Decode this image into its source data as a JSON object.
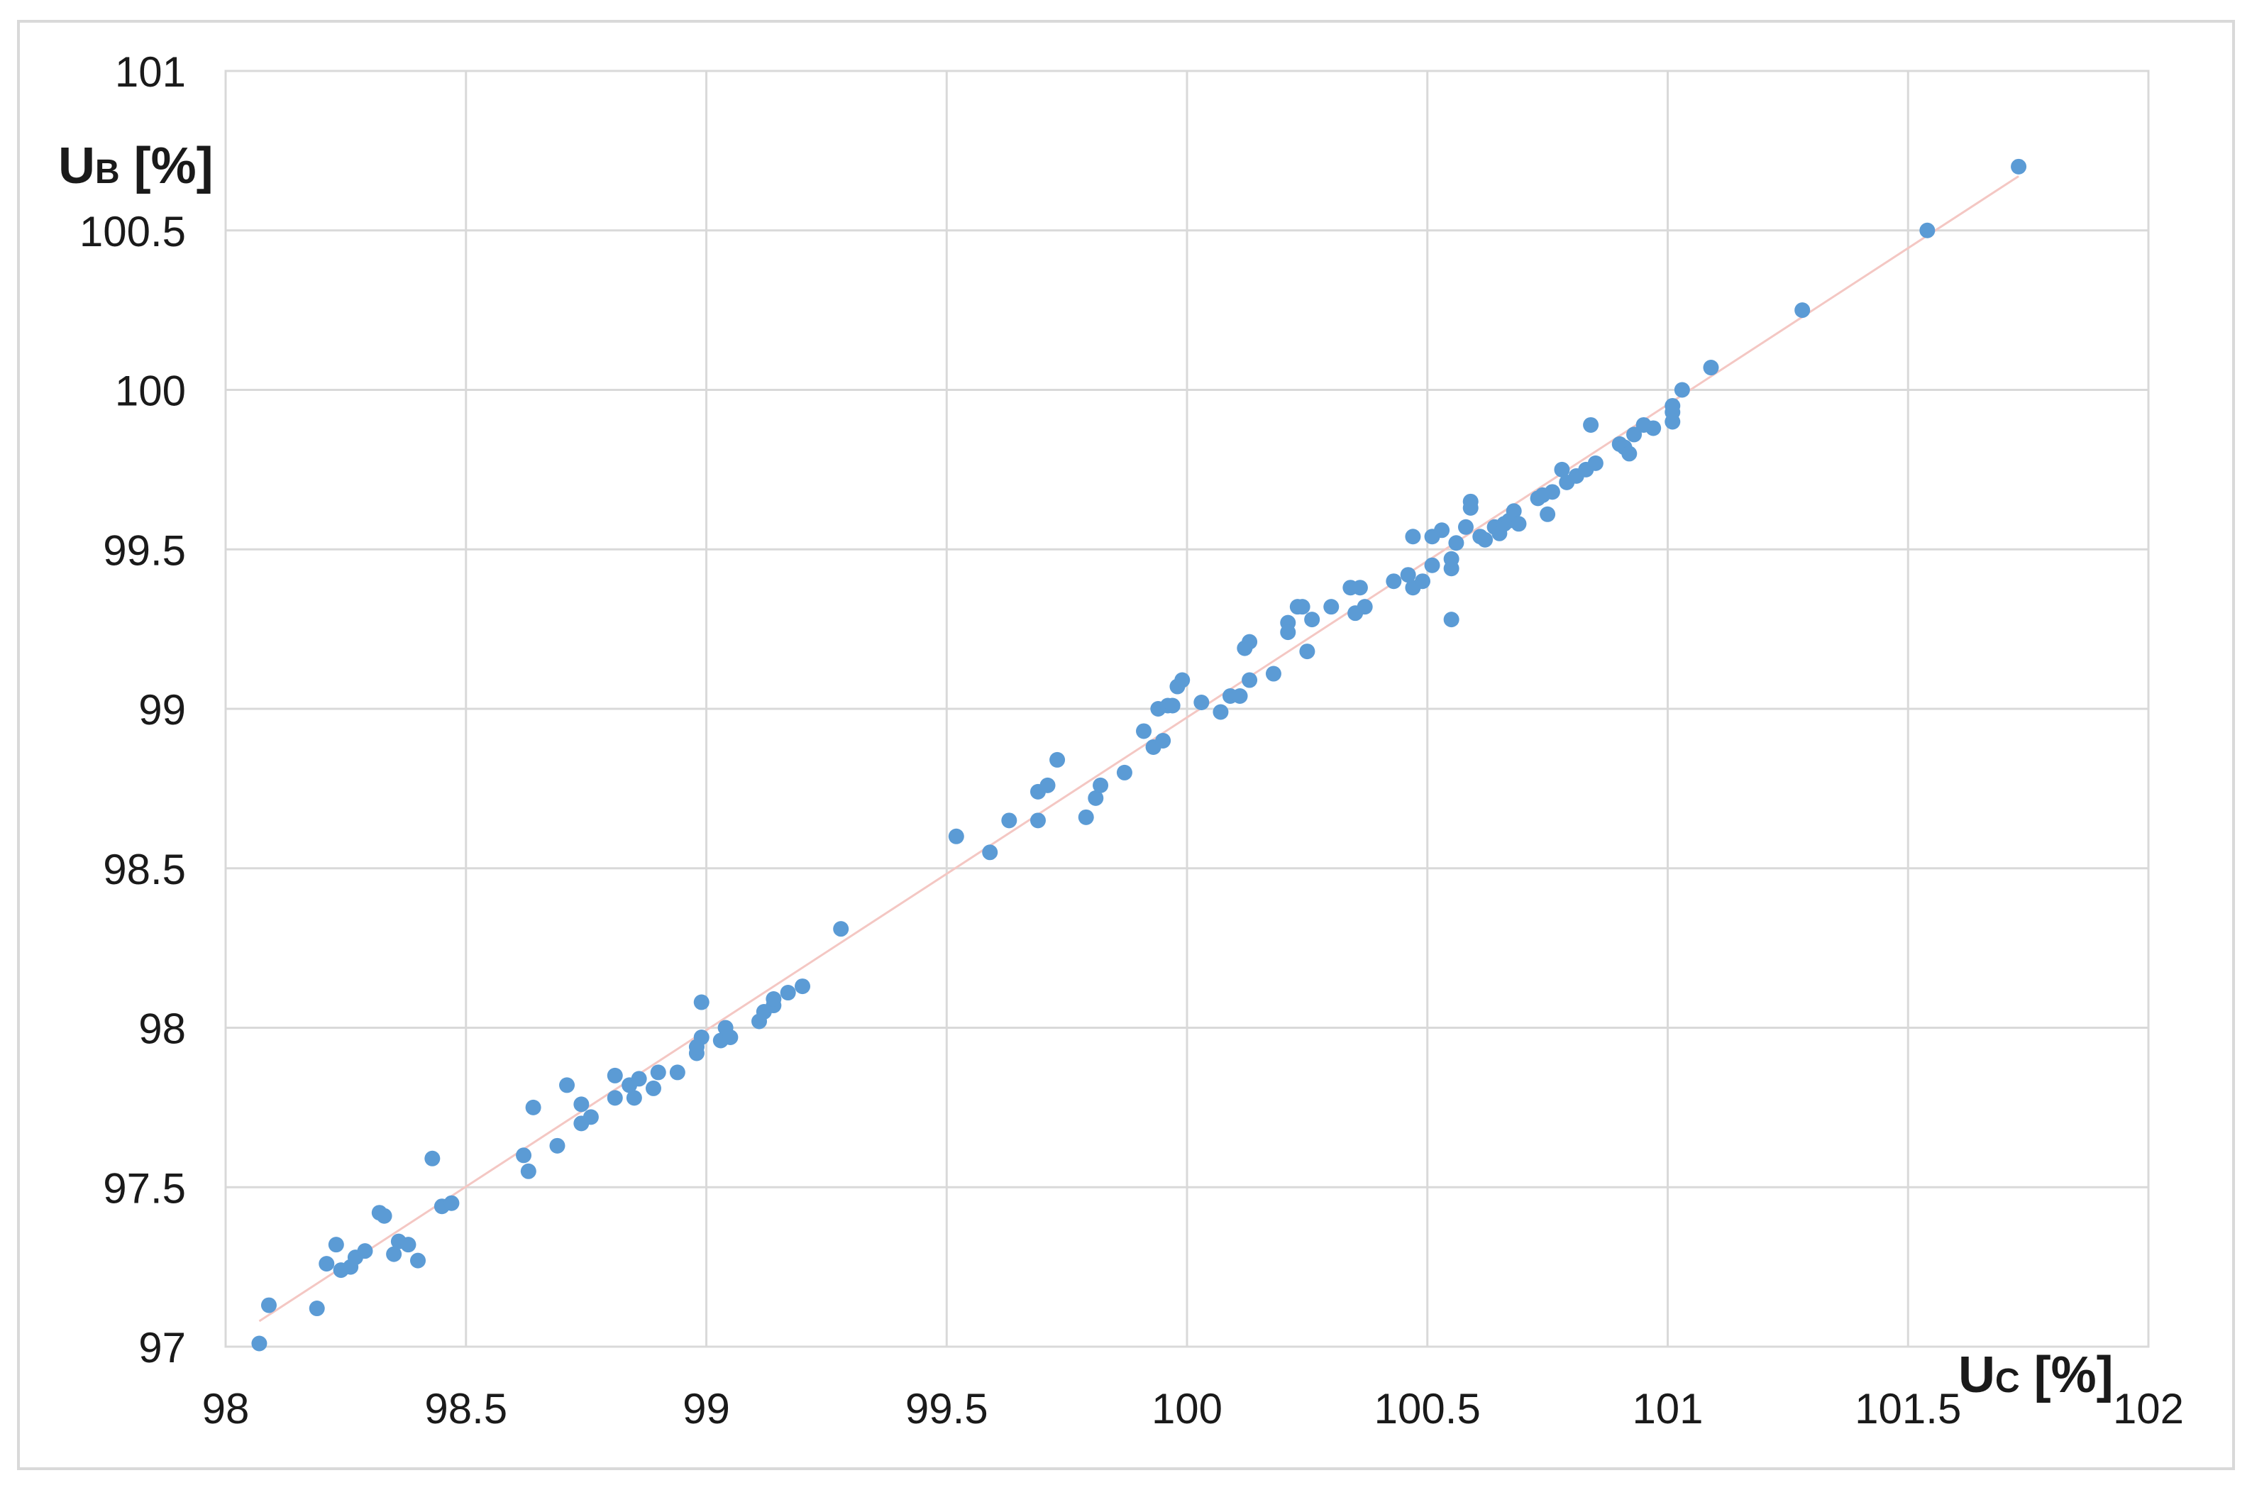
{
  "chart_data": {
    "type": "scatter",
    "title": "",
    "x_axis": {
      "label_main": "U",
      "label_sub": "C",
      "label_unit": " [%]",
      "min": 98,
      "max": 102,
      "step": 0.5,
      "ticks": [
        "98",
        "98.5",
        "99",
        "99.5",
        "100",
        "100.5",
        "101",
        "101.5",
        "102"
      ]
    },
    "y_axis": {
      "label_main": "U",
      "label_sub": "B",
      "label_unit": " [%]",
      "min": 97,
      "max": 101,
      "step": 0.5,
      "ticks": [
        "97",
        "97.5",
        "98",
        "98.5",
        "99",
        "99.5",
        "100",
        "100.5",
        "101"
      ]
    },
    "grid": true,
    "legend": "none",
    "colors": {
      "points": "#5b9bd5",
      "trendline": "#f4c7c3",
      "grid": "#d9d9d9"
    },
    "trendline": {
      "type": "linear",
      "x": [
        98.07,
        101.73
      ],
      "y": [
        97.08,
        100.67
      ]
    },
    "series": [
      {
        "points": [
          [
            98.07,
            97.01
          ],
          [
            98.09,
            97.13
          ],
          [
            98.19,
            97.12
          ],
          [
            98.21,
            97.26
          ],
          [
            98.23,
            97.32
          ],
          [
            98.24,
            97.24
          ],
          [
            98.26,
            97.25
          ],
          [
            98.27,
            97.28
          ],
          [
            98.29,
            97.3
          ],
          [
            98.32,
            97.42
          ],
          [
            98.33,
            97.41
          ],
          [
            98.35,
            97.29
          ],
          [
            98.36,
            97.33
          ],
          [
            98.38,
            97.32
          ],
          [
            98.4,
            97.27
          ],
          [
            98.43,
            97.59
          ],
          [
            98.45,
            97.44
          ],
          [
            98.47,
            97.45
          ],
          [
            98.62,
            97.6
          ],
          [
            98.63,
            97.55
          ],
          [
            98.64,
            97.75
          ],
          [
            98.69,
            97.63
          ],
          [
            98.71,
            97.82
          ],
          [
            98.74,
            97.76
          ],
          [
            98.74,
            97.7
          ],
          [
            98.76,
            97.72
          ],
          [
            98.81,
            97.85
          ],
          [
            98.81,
            97.78
          ],
          [
            98.84,
            97.82
          ],
          [
            98.85,
            97.78
          ],
          [
            98.86,
            97.84
          ],
          [
            98.89,
            97.81
          ],
          [
            98.9,
            97.86
          ],
          [
            98.94,
            97.86
          ],
          [
            98.98,
            97.92
          ],
          [
            98.98,
            97.94
          ],
          [
            98.99,
            97.97
          ],
          [
            98.99,
            98.08
          ],
          [
            99.03,
            97.96
          ],
          [
            99.04,
            98.0
          ],
          [
            99.05,
            97.97
          ],
          [
            99.11,
            98.02
          ],
          [
            99.12,
            98.05
          ],
          [
            99.14,
            98.07
          ],
          [
            99.14,
            98.09
          ],
          [
            99.17,
            98.11
          ],
          [
            99.2,
            98.13
          ],
          [
            99.28,
            98.31
          ],
          [
            99.52,
            98.6
          ],
          [
            99.59,
            98.55
          ],
          [
            99.63,
            98.65
          ],
          [
            99.69,
            98.65
          ],
          [
            99.69,
            98.74
          ],
          [
            99.71,
            98.76
          ],
          [
            99.73,
            98.84
          ],
          [
            99.79,
            98.66
          ],
          [
            99.81,
            98.72
          ],
          [
            99.82,
            98.76
          ],
          [
            99.87,
            98.8
          ],
          [
            99.91,
            98.93
          ],
          [
            99.93,
            98.88
          ],
          [
            99.94,
            99.0
          ],
          [
            99.95,
            98.9
          ],
          [
            99.96,
            99.01
          ],
          [
            99.97,
            99.01
          ],
          [
            99.98,
            99.07
          ],
          [
            99.99,
            99.09
          ],
          [
            100.03,
            99.02
          ],
          [
            100.07,
            98.99
          ],
          [
            100.09,
            99.04
          ],
          [
            100.11,
            99.04
          ],
          [
            100.12,
            99.19
          ],
          [
            100.13,
            99.21
          ],
          [
            100.13,
            99.09
          ],
          [
            100.18,
            99.11
          ],
          [
            100.21,
            99.27
          ],
          [
            100.21,
            99.24
          ],
          [
            100.23,
            99.32
          ],
          [
            100.24,
            99.32
          ],
          [
            100.25,
            99.18
          ],
          [
            100.26,
            99.28
          ],
          [
            100.3,
            99.32
          ],
          [
            100.34,
            99.38
          ],
          [
            100.35,
            99.3
          ],
          [
            100.36,
            99.38
          ],
          [
            100.37,
            99.32
          ],
          [
            100.43,
            99.4
          ],
          [
            100.46,
            99.42
          ],
          [
            100.47,
            99.54
          ],
          [
            100.47,
            99.38
          ],
          [
            100.49,
            99.4
          ],
          [
            100.51,
            99.54
          ],
          [
            100.51,
            99.45
          ],
          [
            100.53,
            99.56
          ],
          [
            100.55,
            99.44
          ],
          [
            100.55,
            99.47
          ],
          [
            100.55,
            99.28
          ],
          [
            100.56,
            99.52
          ],
          [
            100.58,
            99.57
          ],
          [
            100.59,
            99.65
          ],
          [
            100.59,
            99.63
          ],
          [
            100.61,
            99.54
          ],
          [
            100.62,
            99.53
          ],
          [
            100.64,
            99.57
          ],
          [
            100.65,
            99.55
          ],
          [
            100.66,
            99.58
          ],
          [
            100.67,
            99.59
          ],
          [
            100.68,
            99.62
          ],
          [
            100.69,
            99.58
          ],
          [
            100.73,
            99.66
          ],
          [
            100.74,
            99.67
          ],
          [
            100.75,
            99.61
          ],
          [
            100.76,
            99.68
          ],
          [
            100.78,
            99.75
          ],
          [
            100.79,
            99.71
          ],
          [
            100.81,
            99.73
          ],
          [
            100.83,
            99.75
          ],
          [
            100.84,
            99.89
          ],
          [
            100.85,
            99.77
          ],
          [
            100.9,
            99.83
          ],
          [
            100.91,
            99.82
          ],
          [
            100.92,
            99.8
          ],
          [
            100.93,
            99.86
          ],
          [
            100.95,
            99.89
          ],
          [
            100.97,
            99.88
          ],
          [
            101.01,
            99.9
          ],
          [
            101.01,
            99.93
          ],
          [
            101.01,
            99.95
          ],
          [
            101.03,
            100.0
          ],
          [
            101.09,
            100.07
          ],
          [
            101.28,
            100.25
          ],
          [
            101.54,
            100.5
          ],
          [
            101.73,
            100.7
          ]
        ]
      }
    ]
  }
}
